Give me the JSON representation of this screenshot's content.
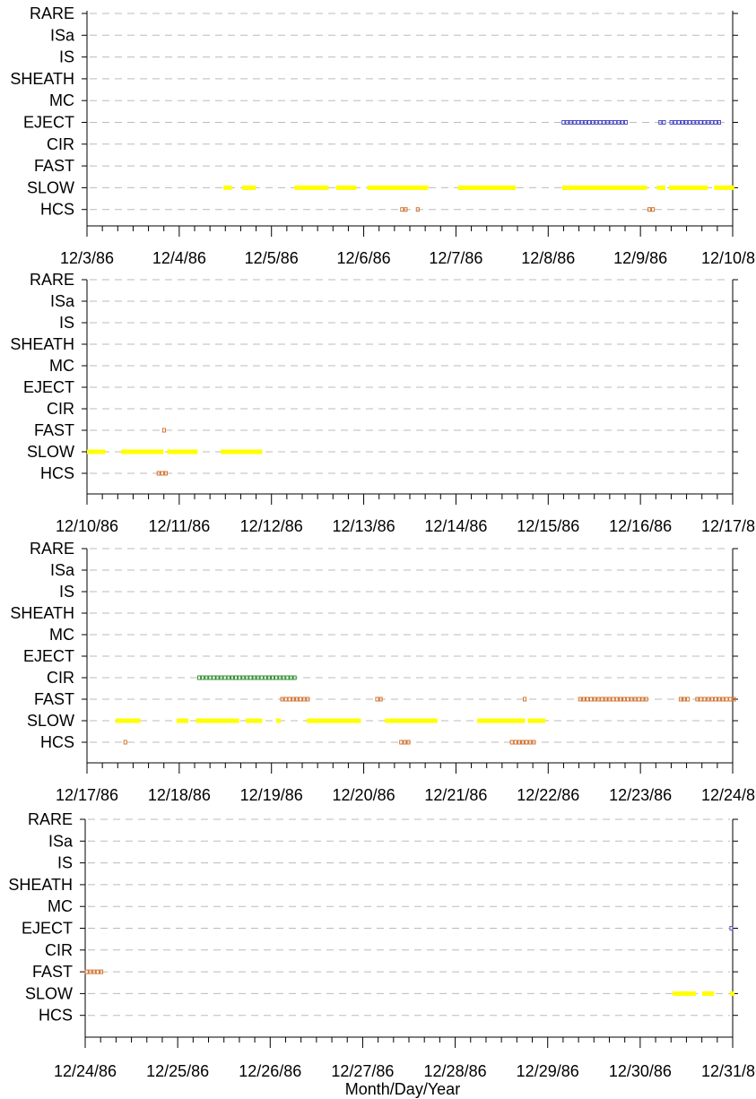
{
  "colors": {
    "SLOW": "#ffff00",
    "HCS": "#d2691e",
    "FAST": "#d2691e",
    "CIR": "#228b22",
    "EJECT": "#4040c0",
    "grid": "#bbbbbb",
    "axis": "#000000"
  },
  "chart_data": {
    "type": "timeline",
    "xlabel": "Month/Day/Year",
    "ylabel": "",
    "title": "",
    "categories": [
      "RARE",
      "ISa",
      "IS",
      "SHEATH",
      "MC",
      "EJECT",
      "CIR",
      "FAST",
      "SLOW",
      "HCS"
    ],
    "panels": [
      {
        "x_range": [
          "12/3/86",
          "12/10/86"
        ],
        "tick_labels": [
          "12/3/86",
          "12/4/86",
          "12/5/86",
          "12/6/86",
          "12/7/86",
          "12/8/86",
          "12/9/86",
          "12/10/86"
        ],
        "events": [
          {
            "category": "SLOW",
            "style": "solid",
            "intervals": [
              [
                1.48,
                1.57
              ],
              [
                1.68,
                1.83
              ],
              [
                2.25,
                2.62
              ],
              [
                2.7,
                2.92
              ],
              [
                3.04,
                3.7
              ],
              [
                4.02,
                4.65
              ],
              [
                5.15,
                6.07
              ],
              [
                6.18,
                6.27
              ],
              [
                6.31,
                6.73
              ],
              [
                6.8,
                7.02
              ]
            ]
          },
          {
            "category": "HCS",
            "style": "hollow",
            "intervals": [
              [
                3.4,
                3.49
              ],
              [
                3.57,
                3.61
              ],
              [
                6.08,
                6.16
              ]
            ]
          },
          {
            "category": "EJECT",
            "style": "hollow",
            "intervals": [
              [
                5.15,
                5.87
              ],
              [
                6.2,
                6.28
              ],
              [
                6.32,
                6.87
              ]
            ]
          }
        ]
      },
      {
        "x_range": [
          "12/10/86",
          "12/17/86"
        ],
        "tick_labels": [
          "12/10/86",
          "12/11/86",
          "12/12/86",
          "12/13/86",
          "12/14/86",
          "12/15/86",
          "12/16/86",
          "12/17/86"
        ],
        "events": [
          {
            "category": "SLOW",
            "style": "solid",
            "intervals": [
              [
                0.0,
                0.2
              ],
              [
                0.37,
                0.83
              ],
              [
                0.87,
                1.2
              ],
              [
                1.45,
                1.9
              ]
            ]
          },
          {
            "category": "FAST",
            "style": "hollow",
            "intervals": [
              [
                0.82,
                0.86
              ]
            ]
          },
          {
            "category": "HCS",
            "style": "hollow",
            "intervals": [
              [
                0.76,
                0.89
              ]
            ]
          }
        ]
      },
      {
        "x_range": [
          "12/17/86",
          "12/24/86"
        ],
        "tick_labels": [
          "12/17/86",
          "12/18/86",
          "12/19/86",
          "12/20/86",
          "12/21/86",
          "12/22/86",
          "12/23/86",
          "12/24/86"
        ],
        "events": [
          {
            "category": "SLOW",
            "style": "solid",
            "intervals": [
              [
                0.31,
                0.58
              ],
              [
                0.97,
                1.1
              ],
              [
                1.18,
                1.65
              ],
              [
                1.72,
                1.9
              ],
              [
                2.05,
                2.1
              ],
              [
                2.38,
                2.97
              ],
              [
                3.23,
                3.8
              ],
              [
                4.23,
                4.75
              ],
              [
                4.78,
                4.97
              ]
            ]
          },
          {
            "category": "HCS",
            "style": "hollow",
            "intervals": [
              [
                0.4,
                0.44
              ],
              [
                3.39,
                3.52
              ],
              [
                4.59,
                4.85
              ]
            ]
          },
          {
            "category": "FAST",
            "style": "hollow",
            "intervals": [
              [
                2.1,
                2.4
              ],
              [
                3.13,
                3.22
              ],
              [
                4.73,
                4.77
              ],
              [
                5.33,
                6.07
              ],
              [
                6.42,
                6.55
              ],
              [
                6.6,
                7.17
              ]
            ]
          },
          {
            "category": "CIR",
            "style": "hollow",
            "intervals": [
              [
                1.2,
                2.28
              ]
            ]
          }
        ]
      },
      {
        "x_range": [
          "12/24/86",
          "12/31/86"
        ],
        "tick_labels": [
          "12/24/86",
          "12/25/86",
          "12/26/86",
          "12/27/86",
          "12/28/86",
          "12/29/86",
          "12/30/86",
          "12/31/86"
        ],
        "events": [
          {
            "category": "FAST",
            "style": "hollow",
            "intervals": [
              [
                0.0,
                0.18
              ]
            ]
          },
          {
            "category": "SLOW",
            "style": "solid",
            "intervals": [
              [
                6.35,
                6.6
              ],
              [
                6.67,
                6.8
              ],
              [
                6.97,
                7.15
              ]
            ]
          },
          {
            "category": "EJECT",
            "style": "hollow",
            "intervals": [
              [
                6.97,
                7.15
              ]
            ]
          }
        ]
      }
    ]
  }
}
